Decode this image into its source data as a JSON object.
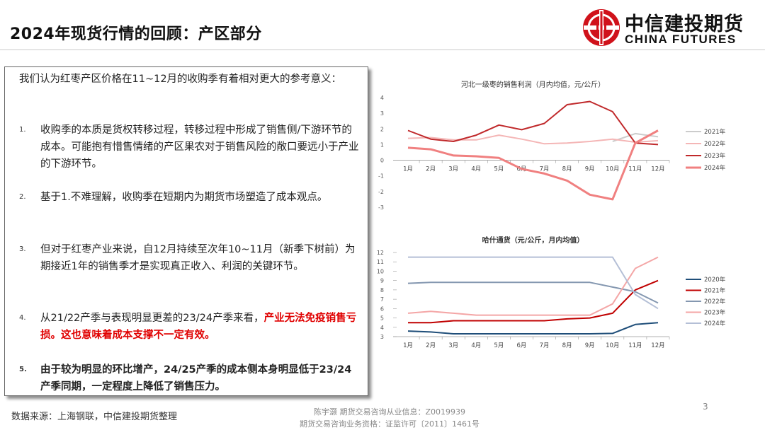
{
  "header": {
    "title": "2024年现货行情的回顾：产区部分",
    "logo_cn": "中信建投期货",
    "logo_en": "CHINA FUTURES",
    "logo_color": "#d0121b"
  },
  "textbox": {
    "intro": "我们认为红枣产区价格在11~12月的收购季有着相对更大的参考意义：",
    "items": [
      {
        "num": "1.",
        "text": "收购季的本质是货权转移过程，转移过程中形成了销售侧/下游环节的成本。可能抱有惜售情绪的产区果农对于销售风险的敞口要远小于产业的下游环节。"
      },
      {
        "num": "2.",
        "text": "基于1.不难理解，收购季在短期内为期货市场塑造了成本观点。"
      },
      {
        "num": "3.",
        "text": "但对于红枣产业来说，自12月持续至次年10~11月（新季下树前）为期接近1年的销售季才是实现真正收入、利润的关键环节。"
      },
      {
        "num": "4.",
        "text_plain": "从21/22产季与表现明显更差的23/24产季来看，",
        "text_red": "产业无法免疫销售亏损。这也意味着成本支撑不一定有效。"
      },
      {
        "num": "5.",
        "text_bold": "由于较为明显的环比增产，24/25产季的成本侧本身明显低于23/24产季同期，一定程度上降低了销售压力。"
      }
    ]
  },
  "footer": {
    "source": "数据来源：上海钢联，中信建投期货整理",
    "analyst": "陈宇灏 期货交易咨询从业信息：Z0019939",
    "license": "期货交易咨询业务资格：证监许可〔2011〕1461号",
    "page": "3"
  },
  "chart_data": [
    {
      "type": "line",
      "title": "河北一级枣的销售利润（月内均值，元/公斤）",
      "categories": [
        "1月",
        "2月",
        "3月",
        "4月",
        "5月",
        "6月",
        "7月",
        "8月",
        "9月",
        "10月",
        "11月",
        "12月"
      ],
      "ylim": [
        -3,
        4
      ],
      "yticks": [
        -3,
        -2,
        -1,
        0,
        1,
        2,
        3,
        4
      ],
      "legend_position": "right",
      "series": [
        {
          "name": "2021年",
          "color": "#cccccc",
          "values": [
            null,
            null,
            null,
            null,
            null,
            null,
            null,
            null,
            null,
            1.2,
            1.7,
            1.5
          ]
        },
        {
          "name": "2022年",
          "color": "#f4b6b6",
          "values": [
            1.4,
            1.45,
            1.3,
            1.3,
            1.6,
            1.35,
            1.05,
            1.1,
            1.2,
            1.35,
            1.15,
            1.25
          ]
        },
        {
          "name": "2023年",
          "color": "#c0292b",
          "values": [
            1.9,
            1.35,
            1.2,
            1.6,
            2.25,
            1.95,
            2.35,
            3.55,
            3.75,
            3.1,
            1.1,
            1.0
          ]
        },
        {
          "name": "2024年",
          "color": "#f08080",
          "values": [
            0.8,
            0.7,
            0.3,
            0.25,
            0.15,
            -0.55,
            -0.85,
            -1.3,
            -2.2,
            -2.5,
            1.1,
            1.9
          ]
        }
      ]
    },
    {
      "type": "line",
      "title": "哈什通货（元/公斤，月内均值）",
      "categories": [
        "1月",
        "2月",
        "3月",
        "4月",
        "5月",
        "6月",
        "7月",
        "8月",
        "9月",
        "10月",
        "11月",
        "12月"
      ],
      "ylim": [
        3,
        12
      ],
      "yticks": [
        3,
        4,
        5,
        6,
        7,
        8,
        9,
        10,
        11,
        12
      ],
      "legend_position": "right",
      "series": [
        {
          "name": "2020年",
          "color": "#1f4e79",
          "values": [
            3.6,
            3.5,
            3.3,
            3.3,
            3.3,
            3.3,
            3.3,
            3.3,
            3.3,
            3.35,
            4.3,
            4.5
          ]
        },
        {
          "name": "2021年",
          "color": "#c00000",
          "values": [
            4.5,
            4.5,
            4.7,
            4.7,
            4.7,
            4.7,
            4.7,
            4.9,
            5.0,
            5.5,
            8.0,
            9.0
          ]
        },
        {
          "name": "2022年",
          "color": "#8497b0",
          "values": [
            8.7,
            8.8,
            8.8,
            8.8,
            8.8,
            8.8,
            8.8,
            8.8,
            8.8,
            8.3,
            7.8,
            6.6
          ]
        },
        {
          "name": "2023年",
          "color": "#f4a6a6",
          "values": [
            5.5,
            5.7,
            5.5,
            5.3,
            5.3,
            5.3,
            5.3,
            5.3,
            5.3,
            6.5,
            10.3,
            11.5
          ]
        },
        {
          "name": "2024年",
          "color": "#b4bfd6",
          "values": [
            11.5,
            11.5,
            11.5,
            11.5,
            11.5,
            11.5,
            11.5,
            11.5,
            11.5,
            11.5,
            7.5,
            6.0
          ]
        }
      ]
    }
  ]
}
